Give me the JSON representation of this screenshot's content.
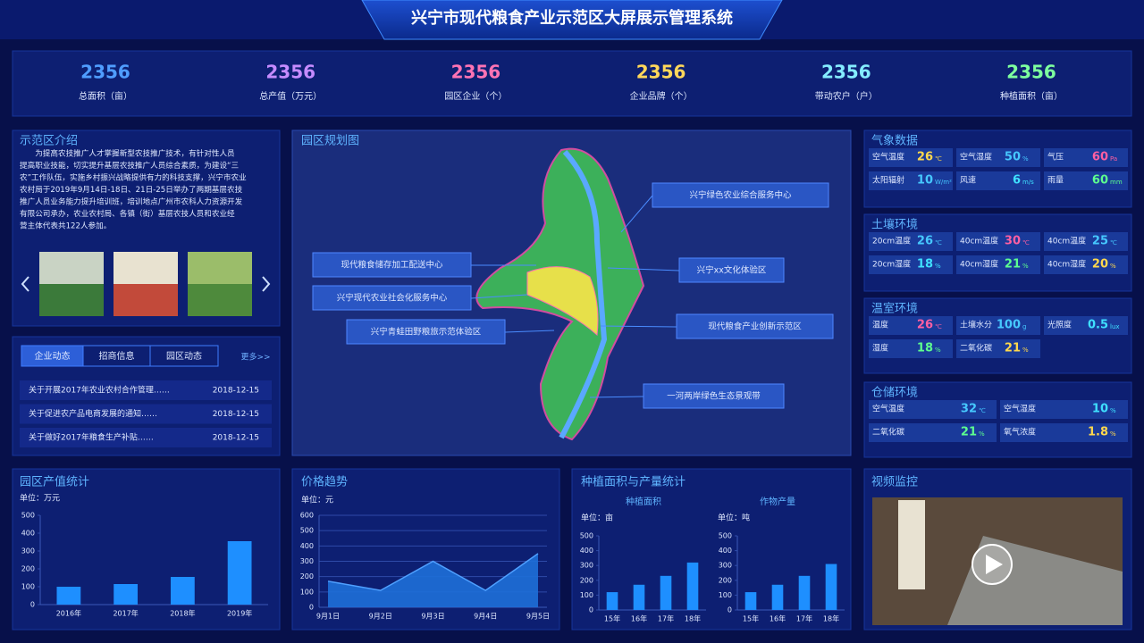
{
  "header": {
    "title": "兴宁市现代粮食产业示范区大屏展示管理系统"
  },
  "stats": [
    {
      "value": 2356,
      "label": "总面积（亩）"
    },
    {
      "value": 2356,
      "label": "总产值（万元）"
    },
    {
      "value": 2356,
      "label": "园区企业（个）"
    },
    {
      "value": 2356,
      "label": "企业品牌（个）"
    },
    {
      "value": 2356,
      "label": "带动农户（户）"
    },
    {
      "value": 2356,
      "label": "种植面积（亩）"
    }
  ],
  "intro": {
    "title": "示范区介绍",
    "lines": [
      "　　为提高农技推广人才掌握新型农技推广技术，有针对性人员",
      "提高职业技能，切实提升基层农技推广人员综合素质，为建设“三",
      "农”工作队伍，实施乡村振兴战略提供有力的科技支撑，兴宁市农业",
      "农村局于2019年9月14日-18日、21日-25日举办了两期基层农技",
      "推广人员业务能力提升培训班，培训地点广州市农科人力资源开发",
      "有限公司承办，农业农村局、各镇（街）基层农技人员和农业经",
      "营主体代表共122人参加。"
    ]
  },
  "news": {
    "tabs": [
      "企业动态",
      "招商信息",
      "园区动态"
    ],
    "more": "更多>>",
    "items": [
      {
        "title": "关于开展2017年农业农村合作管理……",
        "date": "2018-12-15"
      },
      {
        "title": "关于促进农产品电商发展的通知……",
        "date": "2018-12-15"
      },
      {
        "title": "关于做好2017年粮食生产补贴……",
        "date": "2018-12-15"
      }
    ]
  },
  "map": {
    "title": "园区规划图",
    "labels": [
      "兴宁绿色农业综合服务中心",
      "现代粮食储存加工配送中心",
      "兴宁现代农业社会化服务中心",
      "兴宁青蛙田野粮旅示范体验区",
      "兴宁xx文化体验区",
      "现代粮食产业创新示范区",
      "一河两岸绿色生态景观带"
    ]
  },
  "environment": [
    {
      "title": "气象数据",
      "items": [
        {
          "label": "空气温度",
          "value": 26,
          "unit": "℃"
        },
        {
          "label": "空气湿度",
          "value": 50,
          "unit": "%"
        },
        {
          "label": "气压",
          "value": 60,
          "unit": "Pa"
        },
        {
          "label": "太阳辐射",
          "value": 10,
          "unit": "W/m²"
        },
        {
          "label": "风速",
          "value": 6,
          "unit": "m/s"
        },
        {
          "label": "雨量",
          "value": 60,
          "unit": "mm"
        }
      ]
    },
    {
      "title": "土壤环境",
      "items": [
        {
          "label": "20cm温度",
          "value": 26,
          "unit": "℃"
        },
        {
          "label": "40cm温度",
          "value": 30,
          "unit": "℃"
        },
        {
          "label": "40cm温度",
          "value": 25,
          "unit": "℃"
        },
        {
          "label": "20cm湿度",
          "value": 18,
          "unit": "%"
        },
        {
          "label": "40cm湿度",
          "value": 21,
          "unit": "%"
        },
        {
          "label": "40cm湿度",
          "value": 20,
          "unit": "%"
        }
      ]
    },
    {
      "title": "温室环境",
      "items": [
        {
          "label": "温度",
          "value": 26,
          "unit": "℃"
        },
        {
          "label": "土壤水分",
          "value": 100,
          "unit": "g"
        },
        {
          "label": "光照度",
          "value": 0.5,
          "unit": "lux"
        },
        {
          "label": "湿度",
          "value": 18,
          "unit": "%"
        },
        {
          "label": "二氧化碳",
          "value": 21,
          "unit": "%"
        }
      ]
    },
    {
      "title": "仓储环境",
      "items": [
        {
          "label": "空气温度",
          "value": 32,
          "unit": "℃"
        },
        {
          "label": "空气湿度",
          "value": 10,
          "unit": "%"
        },
        {
          "label": "二氧化碳",
          "value": 21,
          "unit": "%"
        },
        {
          "label": "氧气浓度",
          "value": 1.8,
          "unit": "%"
        }
      ]
    }
  ],
  "planting": {
    "title": "种植面积与产量统计"
  },
  "video": {
    "title": "视频监控"
  },
  "chart_data": [
    {
      "type": "bar",
      "title": "园区产值统计",
      "unit": "单位：万元",
      "categories": [
        "2016年",
        "2017年",
        "2018年",
        "2019年"
      ],
      "values": [
        100,
        115,
        155,
        355
      ],
      "color": "#1e8fff",
      "ylim": [
        0,
        500
      ],
      "yticks": [
        0,
        100,
        200,
        300,
        400,
        500
      ],
      "grid": false
    },
    {
      "type": "area",
      "title": "价格趋势",
      "unit": "单位：元",
      "categories": [
        "9月1日",
        "9月2日",
        "9月3日",
        "9月4日",
        "9月5日"
      ],
      "values": [
        170,
        110,
        300,
        110,
        350
      ],
      "color": "#1e6fd8",
      "ylim": [
        0,
        600
      ],
      "yticks": [
        0,
        100,
        200,
        300,
        400,
        500,
        600
      ],
      "grid": true
    },
    {
      "type": "bar",
      "title": "种植面积",
      "unit": "单位：亩",
      "categories": [
        "15年",
        "16年",
        "17年",
        "18年"
      ],
      "values": [
        120,
        170,
        230,
        320
      ],
      "color": "#1e8fff",
      "ylim": [
        0,
        500
      ],
      "yticks": [
        0,
        100,
        200,
        300,
        400,
        500
      ],
      "grid": false
    },
    {
      "type": "bar",
      "title": "作物产量",
      "unit": "单位：吨",
      "categories": [
        "15年",
        "16年",
        "17年",
        "18年"
      ],
      "values": [
        120,
        170,
        230,
        310
      ],
      "color": "#1e8fff",
      "ylim": [
        0,
        500
      ],
      "yticks": [
        0,
        100,
        200,
        300,
        400,
        500
      ],
      "grid": false
    }
  ]
}
